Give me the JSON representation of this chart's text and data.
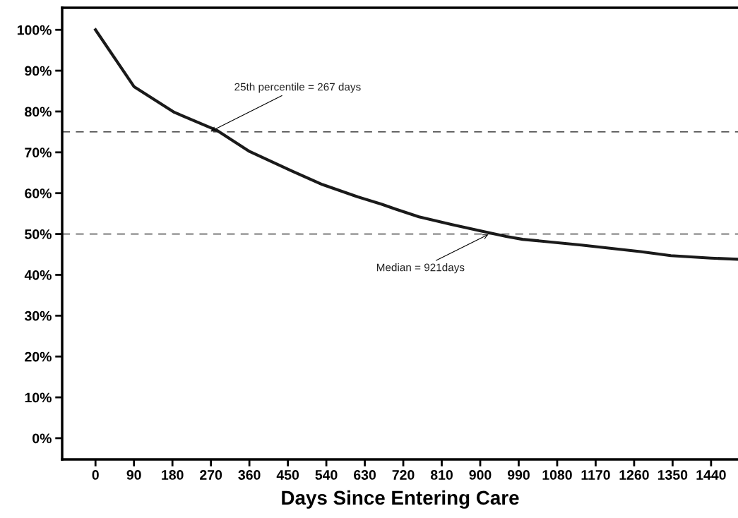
{
  "chart_data": {
    "type": "line",
    "xlabel": "Days Since Entering Care",
    "x": [
      0,
      90,
      184.5,
      283.5,
      360.5,
      459.6,
      531,
      613.8,
      668.8,
      701.8,
      756.8,
      833.9,
      916.5,
      960.6,
      999,
      1136.7,
      1274.4,
      1346,
      1439.5,
      1503
    ],
    "series": [
      {
        "color": "#1a1a1a",
        "values": [
          100,
          86.1,
          79.8,
          75.4,
          70.2,
          65.4,
          62.1,
          59.1,
          57.3,
          56.1,
          54.2,
          52.3,
          50.4,
          49.4,
          48.7,
          47.3,
          45.7,
          44.7,
          44.1,
          43.8
        ]
      }
    ],
    "xlim": [
      -78,
      1503
    ],
    "xticks": [
      0,
      90,
      180,
      270,
      360,
      450,
      540,
      630,
      720,
      810,
      900,
      990,
      1080,
      1170,
      1260,
      1350,
      1440
    ],
    "ylim": [
      -5.2,
      105.4
    ],
    "yticks": [
      {
        "value": 0,
        "label": "0%"
      },
      {
        "value": 10,
        "label": "10%"
      },
      {
        "value": 20,
        "label": "20%"
      },
      {
        "value": 30,
        "label": "30%"
      },
      {
        "value": 40,
        "label": "40%"
      },
      {
        "value": 50,
        "label": "50%"
      },
      {
        "value": 60,
        "label": "60%"
      },
      {
        "value": 70,
        "label": "70%"
      },
      {
        "value": 80,
        "label": "80%"
      },
      {
        "value": 90,
        "label": "90%"
      },
      {
        "value": 100,
        "label": "100%"
      }
    ],
    "ref_lines": [
      {
        "axis": "y",
        "value": 75,
        "color": "#1a1a1a",
        "line_style": "dashed"
      },
      {
        "axis": "y",
        "value": 50,
        "color": "#1a1a1a",
        "line_style": "dashed"
      }
    ],
    "annotations": [
      {
        "text": "25th percentile = 267 days",
        "x": 267,
        "y": 75
      },
      {
        "text": "Median = 921days",
        "x": 921,
        "y": 50
      }
    ],
    "grid": false,
    "legend": false,
    "marker": "none",
    "line_style": "solid"
  }
}
